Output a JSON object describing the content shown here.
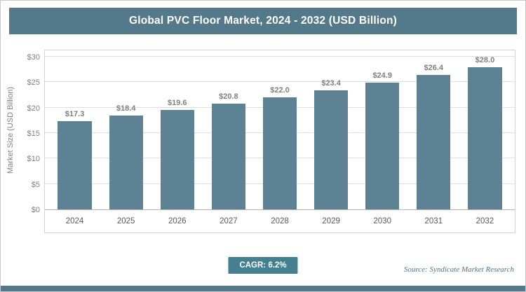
{
  "chart_data": {
    "type": "bar",
    "title": "Global PVC Floor Market, 2024 - 2032 (USD Billion)",
    "categories": [
      "2024",
      "2025",
      "2026",
      "2027",
      "2028",
      "2029",
      "2030",
      "2031",
      "2032"
    ],
    "values": [
      17.3,
      18.4,
      19.6,
      20.8,
      22.0,
      23.4,
      24.9,
      26.4,
      28.0
    ],
    "value_labels": [
      "$17.3",
      "$18.4",
      "$19.6",
      "$20.8",
      "$22.0",
      "$23.4",
      "$24.9",
      "$26.4",
      "$28.0"
    ],
    "xlabel": "",
    "ylabel": "Market Size (USD Billion)",
    "ylim": [
      0,
      30
    ],
    "ytick_step": 5,
    "ytick_labels": [
      "$0",
      "$5",
      "$10",
      "$15",
      "$20",
      "$25",
      "$30"
    ],
    "grid": true,
    "legend": false,
    "bar_color": "#5d8293"
  },
  "footer": {
    "cagr_label": "CAGR: 6.2%",
    "source": "Source: Syndicate Market Research"
  },
  "colors": {
    "title_bar_bg": "#54798b",
    "cagr_bg": "#44808f",
    "bottom_stripe": "#54798b"
  }
}
